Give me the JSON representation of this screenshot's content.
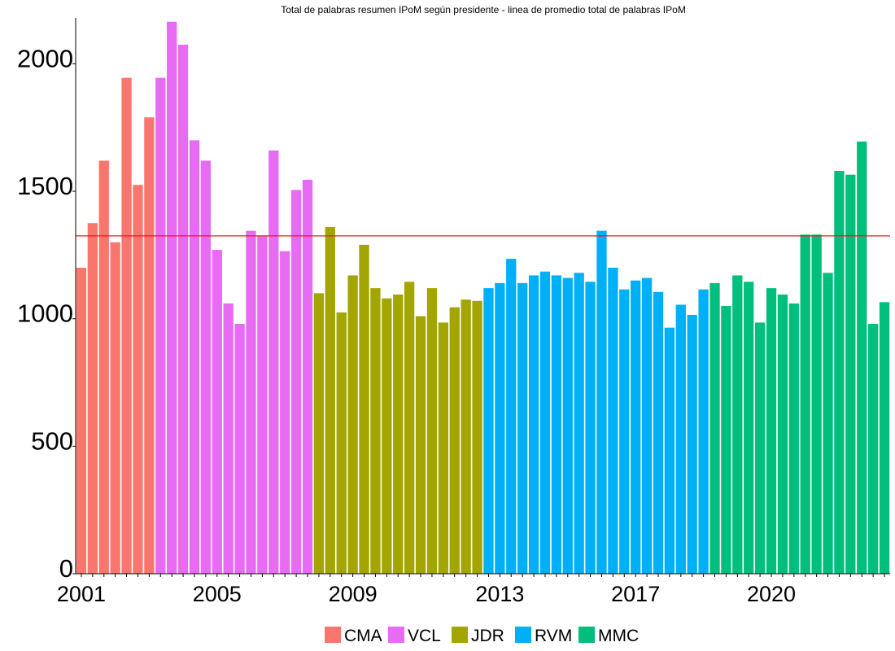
{
  "chart_data": {
    "type": "bar",
    "title": "Total de palabras resumen IPoM según presidente - linea de promedio total de palabras IPoM",
    "xlabel": "",
    "ylabel": "",
    "ylim": [
      0,
      2180
    ],
    "yticks": [
      0,
      500,
      1000,
      1500,
      2000
    ],
    "xticks": [
      {
        "label": "2001",
        "index": 0
      },
      {
        "label": "2005",
        "index": 12
      },
      {
        "label": "2009",
        "index": 24
      },
      {
        "label": "2013",
        "index": 37
      },
      {
        "label": "2017",
        "index": 49
      },
      {
        "label": "2020",
        "index": 61
      }
    ],
    "average_line": {
      "value": 1325,
      "color": "#e8191d"
    },
    "legend_position": "bottom",
    "series": [
      {
        "name": "CMA",
        "color": "#f8766d",
        "values": [
          1200,
          1375,
          1620,
          1300,
          1945,
          1525,
          1790
        ]
      },
      {
        "name": "VCL",
        "color": "#e76bf3",
        "values": [
          1945,
          2165,
          2075,
          1700,
          1620,
          1270,
          1060,
          980,
          1345,
          1325,
          1660,
          1265,
          1505,
          1545
        ]
      },
      {
        "name": "JDR",
        "color": "#a3a500",
        "values": [
          1100,
          1360,
          1025,
          1170,
          1290,
          1120,
          1080,
          1095,
          1145,
          1010,
          1120,
          985,
          1045,
          1075,
          1070
        ]
      },
      {
        "name": "RVM",
        "color": "#00b0f6",
        "values": [
          1120,
          1140,
          1235,
          1140,
          1170,
          1185,
          1170,
          1160,
          1180,
          1145,
          1345,
          1200,
          1115,
          1150,
          1160,
          1105,
          965,
          1055,
          1015,
          1115
        ]
      },
      {
        "name": "MMC",
        "color": "#00bf7d",
        "values": [
          1140,
          1050,
          1170,
          1145,
          985,
          1120,
          1095,
          1060,
          1330,
          1330,
          1180,
          1580,
          1565,
          1695,
          980,
          1065
        ]
      }
    ]
  }
}
